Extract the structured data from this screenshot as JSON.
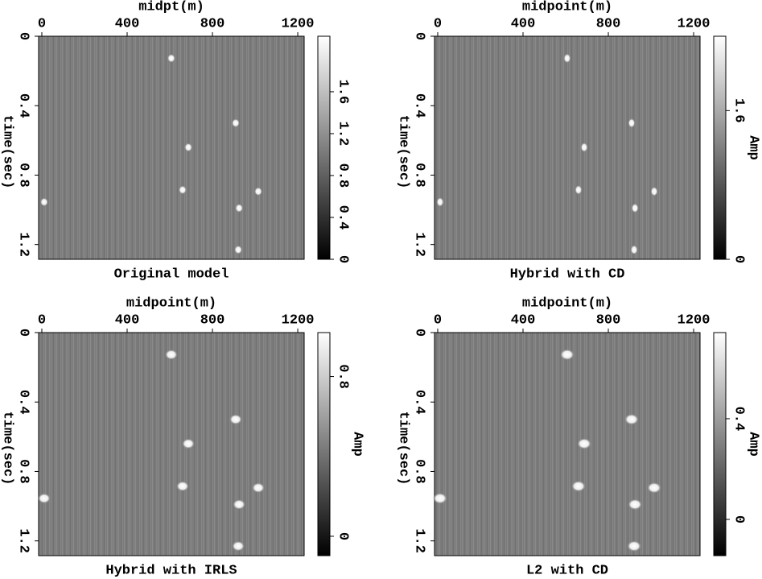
{
  "chart_data": [
    {
      "type": "image",
      "title": "Original model",
      "xlabel": "midpt(m)",
      "ylabel": "time(sec)",
      "xlim": [
        -15,
        1230
      ],
      "xticks": [
        0,
        400,
        800,
        1200
      ],
      "ylim": [
        0,
        1.285
      ],
      "yticks": [
        0,
        0.4,
        0.8,
        1.2
      ],
      "clim": [
        0,
        2.13
      ],
      "cticks": [
        0,
        0.4,
        0.8,
        1.2,
        1.6
      ],
      "x": [
        607,
        909,
        687,
        660,
        1015,
        925,
        921,
        11
      ],
      "y": [
        0.127,
        0.5,
        0.64,
        0.885,
        0.894,
        0.99,
        1.23,
        0.955
      ]
    },
    {
      "type": "image",
      "title": "Hybrid with CD",
      "xlabel": "midpoint(m)",
      "ylabel": "time(sec)",
      "clabel": "Amp",
      "xlim": [
        -15,
        1230
      ],
      "xticks": [
        0,
        400,
        800,
        1200
      ],
      "ylim": [
        0,
        1.285
      ],
      "yticks": [
        0,
        0.4,
        0.8,
        1.2
      ],
      "clim": [
        0,
        2.4
      ],
      "cticks": [
        0,
        1.6
      ],
      "x": [
        607,
        909,
        687,
        660,
        1015,
        925,
        921,
        11
      ],
      "y": [
        0.127,
        0.5,
        0.64,
        0.885,
        0.894,
        0.99,
        1.23,
        0.955
      ]
    },
    {
      "type": "image",
      "title": "Hybrid with IRLS",
      "xlabel": "midpoint(m)",
      "ylabel": "time(sec)",
      "clabel": "Amp",
      "xlim": [
        -15,
        1230
      ],
      "xticks": [
        0,
        400,
        800,
        1200
      ],
      "ylim": [
        0,
        1.285
      ],
      "yticks": [
        0,
        0.4,
        0.8,
        1.2
      ],
      "clim": [
        -0.097,
        1.02
      ],
      "cticks": [
        0,
        0.8
      ],
      "x": [
        607,
        909,
        687,
        660,
        1015,
        925,
        921,
        11
      ],
      "y": [
        0.127,
        0.5,
        0.64,
        0.885,
        0.894,
        0.99,
        1.23,
        0.955
      ]
    },
    {
      "type": "image",
      "title": "L2 with CD",
      "xlabel": "midpoint(m)",
      "ylabel": "time(sec)",
      "clabel": "Amp",
      "xlim": [
        -15,
        1230
      ],
      "xticks": [
        0,
        400,
        800,
        1200
      ],
      "ylim": [
        0,
        1.285
      ],
      "yticks": [
        0,
        0.4,
        0.8,
        1.2
      ],
      "clim": [
        -0.144,
        0.742
      ],
      "cticks": [
        0,
        0.4
      ],
      "x": [
        607,
        909,
        687,
        660,
        1015,
        925,
        921,
        11
      ],
      "y": [
        0.127,
        0.5,
        0.64,
        0.885,
        0.894,
        0.99,
        1.23,
        0.955
      ]
    }
  ]
}
